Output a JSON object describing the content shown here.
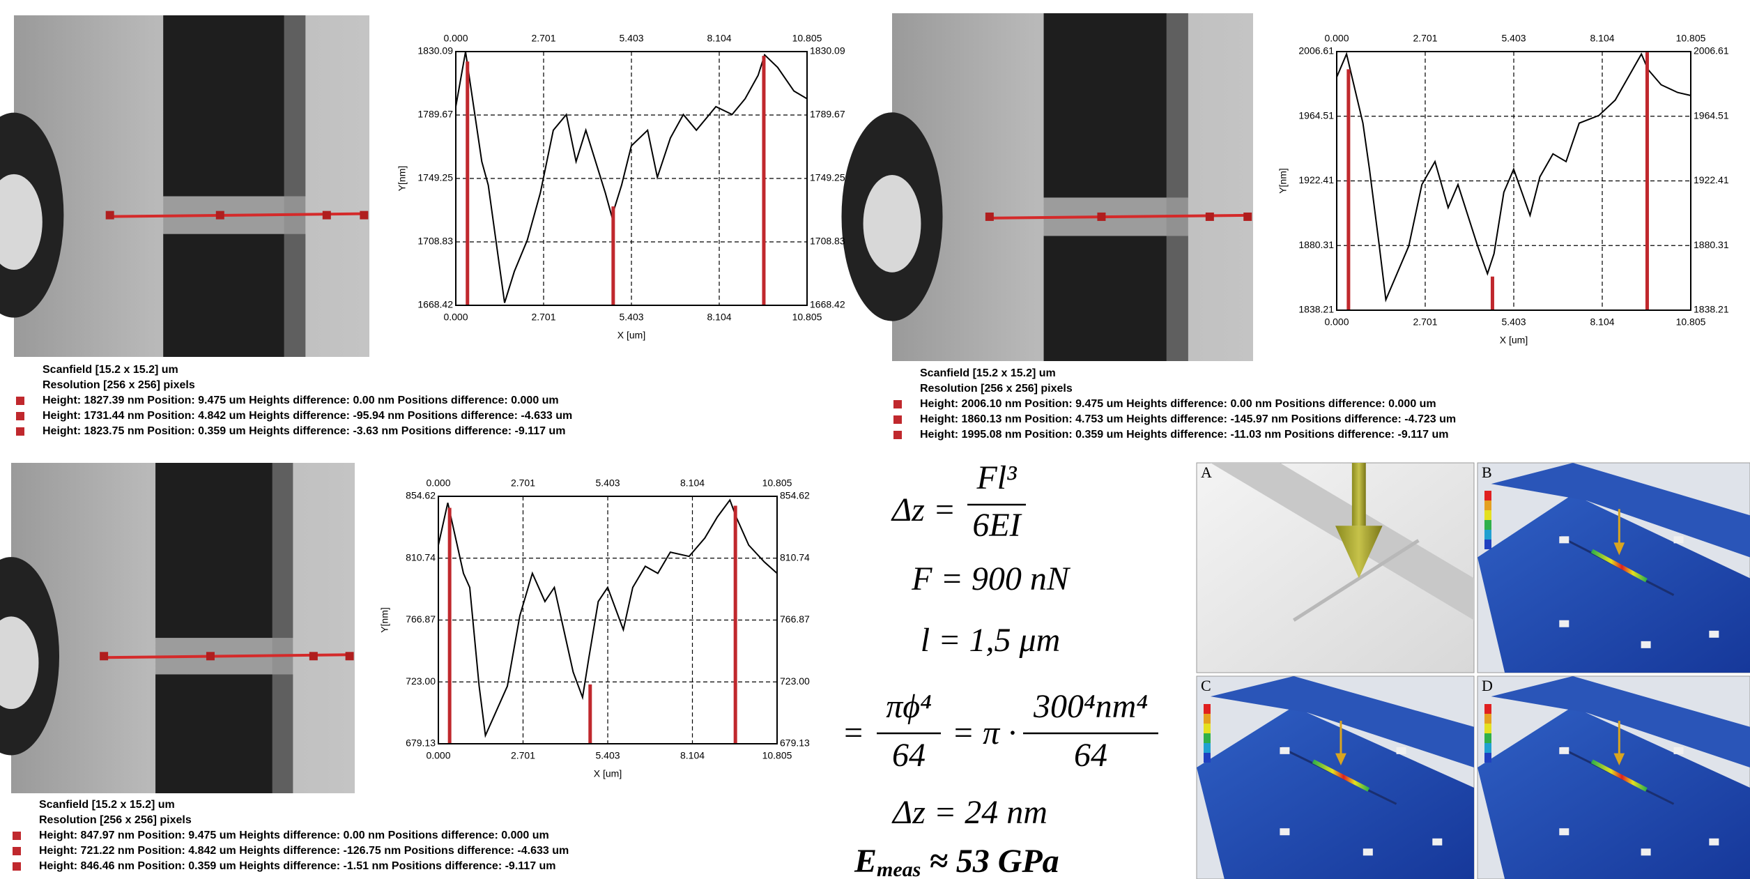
{
  "chart_data": [
    {
      "type": "line",
      "xlabel": "X [um]",
      "ylabel": "Y[nm]",
      "x": [
        0,
        0.3,
        0.8,
        1.0,
        1.3,
        1.5,
        1.8,
        2.2,
        2.6,
        3.0,
        3.4,
        3.7,
        4.0,
        4.3,
        4.6,
        4.8,
        5.1,
        5.4,
        5.9,
        6.2,
        6.6,
        7.0,
        7.4,
        8.0,
        8.5,
        8.9,
        9.3,
        9.5,
        9.9,
        10.4,
        10.805
      ],
      "series": [
        {
          "color": "#000000",
          "values": [
            1795,
            1830,
            1760,
            1745,
            1700,
            1670,
            1690,
            1710,
            1740,
            1780,
            1790,
            1760,
            1780,
            1760,
            1740,
            1725,
            1745,
            1770,
            1780,
            1750,
            1775,
            1790,
            1780,
            1795,
            1790,
            1800,
            1815,
            1828,
            1820,
            1805,
            1800
          ]
        }
      ],
      "cursors": {
        "color": "#c0282d",
        "x": [
          9.475,
          4.842,
          0.359
        ],
        "values": [
          1827.39,
          1731.44,
          1823.75
        ]
      },
      "xlim": [
        0,
        10.805
      ],
      "xticks": [
        {
          "value": 0,
          "label": "0.000"
        },
        2.701,
        5.403,
        8.104,
        10.805
      ],
      "ylim": [
        1668.42,
        1830.09
      ],
      "yticks": [
        1668.42,
        1708.83,
        1749.25,
        1789.67,
        1830.09
      ],
      "grid": true
    },
    {
      "type": "line",
      "xlabel": "X [um]",
      "ylabel": "Y[nm]",
      "x": [
        0,
        0.3,
        0.8,
        1.0,
        1.3,
        1.5,
        1.8,
        2.2,
        2.6,
        3.0,
        3.4,
        3.7,
        4.0,
        4.3,
        4.6,
        4.8,
        5.1,
        5.4,
        5.9,
        6.2,
        6.6,
        7.0,
        7.4,
        8.0,
        8.5,
        8.9,
        9.3,
        9.5,
        9.9,
        10.4,
        10.805
      ],
      "series": [
        {
          "color": "#000000",
          "values": [
            1990,
            2005,
            1960,
            1930,
            1880,
            1845,
            1860,
            1880,
            1920,
            1935,
            1905,
            1920,
            1900,
            1880,
            1862,
            1875,
            1915,
            1930,
            1900,
            1925,
            1940,
            1935,
            1960,
            1965,
            1975,
            1990,
            2005,
            1995,
            1985,
            1980,
            1978
          ]
        }
      ],
      "cursors": {
        "color": "#c0282d",
        "x": [
          9.475,
          4.753,
          0.359
        ],
        "values": [
          2006.1,
          1860.13,
          1995.08
        ]
      },
      "xlim": [
        0,
        10.805
      ],
      "xticks": [
        {
          "value": 0,
          "label": "0.000"
        },
        2.701,
        5.403,
        8.104,
        10.805
      ],
      "ylim": [
        1838.21,
        2006.61
      ],
      "yticks": [
        1838.21,
        1880.31,
        1922.41,
        1964.51,
        2006.61
      ],
      "grid": true
    },
    {
      "type": "line",
      "xlabel": "X [um]",
      "ylabel": "Y[nm]",
      "x": [
        0,
        0.3,
        0.8,
        1.0,
        1.3,
        1.5,
        1.8,
        2.2,
        2.6,
        3.0,
        3.4,
        3.7,
        4.0,
        4.3,
        4.6,
        4.8,
        5.1,
        5.4,
        5.9,
        6.2,
        6.6,
        7.0,
        7.4,
        8.0,
        8.5,
        8.9,
        9.3,
        9.5,
        9.9,
        10.4,
        10.805
      ],
      "series": [
        {
          "color": "#000000",
          "values": [
            820,
            850,
            800,
            790,
            720,
            685,
            700,
            720,
            770,
            800,
            780,
            790,
            760,
            730,
            712,
            740,
            780,
            790,
            760,
            790,
            805,
            800,
            815,
            812,
            825,
            840,
            852,
            840,
            820,
            808,
            800
          ]
        }
      ],
      "cursors": {
        "color": "#c0282d",
        "x": [
          9.475,
          4.842,
          0.359
        ],
        "values": [
          847.97,
          721.22,
          846.46
        ]
      },
      "xlim": [
        0,
        10.805
      ],
      "xticks": [
        {
          "value": 0,
          "label": "0.000"
        },
        2.701,
        5.403,
        8.104,
        10.805
      ],
      "ylim": [
        679.13,
        854.62
      ],
      "yticks": [
        679.13,
        {
          "value": 723,
          "label": "723.00"
        },
        766.87,
        810.74,
        854.62
      ],
      "grid": true
    }
  ],
  "panels": [
    {
      "scanfield": "Scanfield [15.2 x 15.2] um",
      "resolution": "Resolution [256 x 256] pixels",
      "lines": [
        "Height: 1827.39  nm  Position: 9.475  um  Heights difference: 0.00  nm  Positions difference: 0.000  um",
        "Height: 1731.44  nm  Position: 4.842  um  Heights difference: -95.94  nm  Positions difference: -4.633  um",
        "Height: 1823.75  nm  Position: 0.359  um  Heights difference: -3.63  nm  Positions difference: -9.117  um"
      ]
    },
    {
      "scanfield": "Scanfield [15.2 x 15.2] um",
      "resolution": "Resolution [256 x 256] pixels",
      "lines": [
        "Height: 2006.10  nm  Position: 9.475  um  Heights difference: 0.00  nm  Positions difference: 0.000  um",
        "Height: 1860.13  nm  Position: 4.753  um  Heights difference: -145.97  nm  Positions difference: -4.723  um",
        "Height: 1995.08  nm  Position: 0.359  um  Heights difference: -11.03  nm  Positions difference: -9.117  um"
      ]
    },
    {
      "scanfield": "Scanfield [15.2 x 15.2] um",
      "resolution": "Resolution [256 x 256] pixels",
      "lines": [
        "Height: 847.97  nm  Position: 9.475  um  Heights difference: 0.00  nm  Positions difference: 0.000  um",
        "Height: 721.22  nm  Position: 4.842  um  Heights difference: -126.75  nm  Positions difference: -4.633  um",
        "Height: 846.46  nm  Position: 0.359  um  Heights difference: -1.51  nm  Positions difference: -9.117  um"
      ]
    }
  ],
  "equations": {
    "eq1": {
      "lhs": "Δz =",
      "num": "Fl³",
      "den": "6EI"
    },
    "eq2": "F = 900 nN",
    "eq3": "l = 1,5 μm",
    "eq4": {
      "lhs": "=",
      "num1": "πϕ⁴",
      "den1": "64",
      "mid": "= π ·",
      "num2": "300⁴nm⁴",
      "den2": "64"
    },
    "eq5": "Δz = 24 nm",
    "eq6": {
      "base": "E",
      "sub": "meas",
      "rest": " ≈ 53 GPa"
    }
  },
  "fem": [
    {
      "label": "A"
    },
    {
      "label": "B"
    },
    {
      "label": "C"
    },
    {
      "label": "D"
    }
  ]
}
